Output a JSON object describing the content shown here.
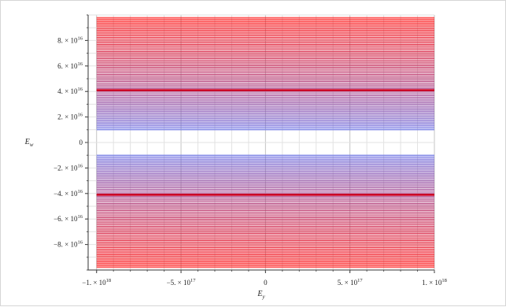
{
  "chart_data": {
    "type": "line",
    "xlabel": "E_y",
    "ylabel": "E_w",
    "xlim": [
      -1.05e+18,
      1e+18
    ],
    "ylim": [
      -1e+17,
      1e+17
    ],
    "grid": true,
    "x_ticks": [
      {
        "value": -1e+18,
        "label": "−1. × 10",
        "exp": "18"
      },
      {
        "value": -5e+17,
        "label": "−5. × 10",
        "exp": "17"
      },
      {
        "value": 0,
        "label": "0",
        "exp": ""
      },
      {
        "value": 5e+17,
        "label": "5. × 10",
        "exp": "17"
      },
      {
        "value": 1e+18,
        "label": "1. × 10",
        "exp": "18"
      }
    ],
    "y_ticks": [
      {
        "value": 8e+16,
        "label": "8. × 10",
        "exp": "16"
      },
      {
        "value": 6e+16,
        "label": "6. × 10",
        "exp": "16"
      },
      {
        "value": 4e+16,
        "label": "4. × 10",
        "exp": "16"
      },
      {
        "value": 2e+16,
        "label": "2. × 10",
        "exp": "16"
      },
      {
        "value": 0,
        "label": "0",
        "exp": ""
      },
      {
        "value": -2e+16,
        "label": "−2. × 10",
        "exp": "16"
      },
      {
        "value": -4e+16,
        "label": "−4. × 10",
        "exp": "16"
      },
      {
        "value": -6e+16,
        "label": "−6. × 10",
        "exp": "16"
      },
      {
        "value": -8e+16,
        "label": "−8. × 10",
        "exp": "16"
      }
    ],
    "series": {
      "style": "horizontal-contour-lines",
      "x_range": [
        -1e+18,
        1e+18
      ],
      "level_min": 1e+16,
      "level_max": 9.8e+16,
      "level_count": 80,
      "emphasized_level": 4.1e+16,
      "color_low": "#5a64e6",
      "color_high": "#ff0000",
      "color_emphasized": "#cc0022",
      "symmetric": true
    }
  }
}
